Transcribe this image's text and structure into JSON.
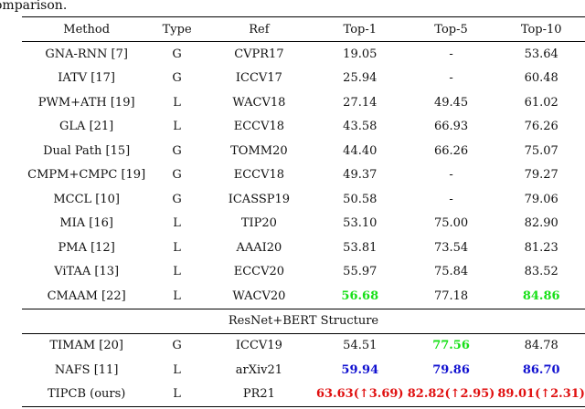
{
  "caption": "omparison.",
  "headers": {
    "method": "Method",
    "type": "Type",
    "ref": "Ref",
    "top1": "Top-1",
    "top5": "Top-5",
    "top10": "Top-10"
  },
  "rows": [
    {
      "method": "GNA-RNN [7]",
      "type": "G",
      "ref": "CVPR17",
      "top1": "19.05",
      "top5": "-",
      "top10": "53.64"
    },
    {
      "method": "IATV [17]",
      "type": "G",
      "ref": "ICCV17",
      "top1": "25.94",
      "top5": "-",
      "top10": "60.48"
    },
    {
      "method": "PWM+ATH [19]",
      "type": "L",
      "ref": "WACV18",
      "top1": "27.14",
      "top5": "49.45",
      "top10": "61.02"
    },
    {
      "method": "GLA [21]",
      "type": "L",
      "ref": "ECCV18",
      "top1": "43.58",
      "top5": "66.93",
      "top10": "76.26"
    },
    {
      "method": "Dual Path [15]",
      "type": "G",
      "ref": "TOMM20",
      "top1": "44.40",
      "top5": "66.26",
      "top10": "75.07"
    },
    {
      "method": "CMPM+CMPC [19]",
      "type": "G",
      "ref": "ECCV18",
      "top1": "49.37",
      "top5": "-",
      "top10": "79.27"
    },
    {
      "method": "MCCL [10]",
      "type": "G",
      "ref": "ICASSP19",
      "top1": "50.58",
      "top5": "-",
      "top10": "79.06"
    },
    {
      "method": "MIA [16]",
      "type": "L",
      "ref": "TIP20",
      "top1": "53.10",
      "top5": "75.00",
      "top10": "82.90"
    },
    {
      "method": "PMA [12]",
      "type": "L",
      "ref": "AAAI20",
      "top1": "53.81",
      "top5": "73.54",
      "top10": "81.23"
    },
    {
      "method": "ViTAA [13]",
      "type": "L",
      "ref": "ECCV20",
      "top1": "55.97",
      "top5": "75.84",
      "top10": "83.52"
    },
    {
      "method": "CMAAM [22]",
      "type": "L",
      "ref": "WACV20",
      "top1": "56.68",
      "top5": "77.18",
      "top10": "84.86"
    }
  ],
  "section_label": "ResNet+BERT Structure",
  "rows2": [
    {
      "method": "TIMAM [20]",
      "type": "G",
      "ref": "ICCV19",
      "top1": "54.51",
      "top5": "77.56",
      "top10": "84.78"
    },
    {
      "method": "NAFS [11]",
      "type": "L",
      "ref": "arXiv21",
      "top1": "59.94",
      "top5": "79.86",
      "top10": "86.70"
    },
    {
      "method": "TIPCB (ours)",
      "type": "L",
      "ref": "PR21",
      "top1": "63.63(↑3.69)",
      "top5": "82.82(↑2.95)",
      "top10": "89.01(↑2.31)"
    }
  ],
  "colors": {
    "best": "#e01010",
    "second": "#1010d0",
    "third": "#18e018"
  }
}
